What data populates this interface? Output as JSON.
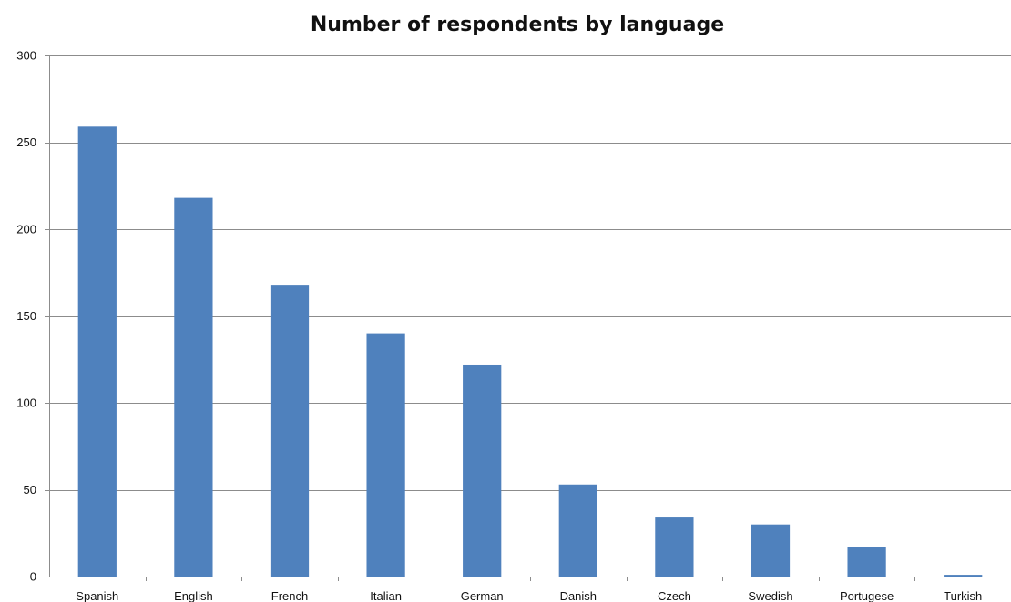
{
  "chart_data": {
    "type": "bar",
    "title": "Number of respondents by language",
    "xlabel": "",
    "ylabel": "",
    "categories": [
      "Spanish",
      "English",
      "French",
      "Italian",
      "German",
      "Danish",
      "Czech",
      "Swedish",
      "Portugese",
      "Turkish"
    ],
    "series": [
      {
        "values": [
          259,
          218,
          168,
          140,
          122,
          53,
          34,
          30,
          17,
          1
        ],
        "color": "#4f81bd"
      }
    ],
    "ylim": [
      0,
      300
    ],
    "yticks": [
      0,
      50,
      100,
      150,
      200,
      250,
      300
    ],
    "grid": true,
    "legend": "none"
  }
}
